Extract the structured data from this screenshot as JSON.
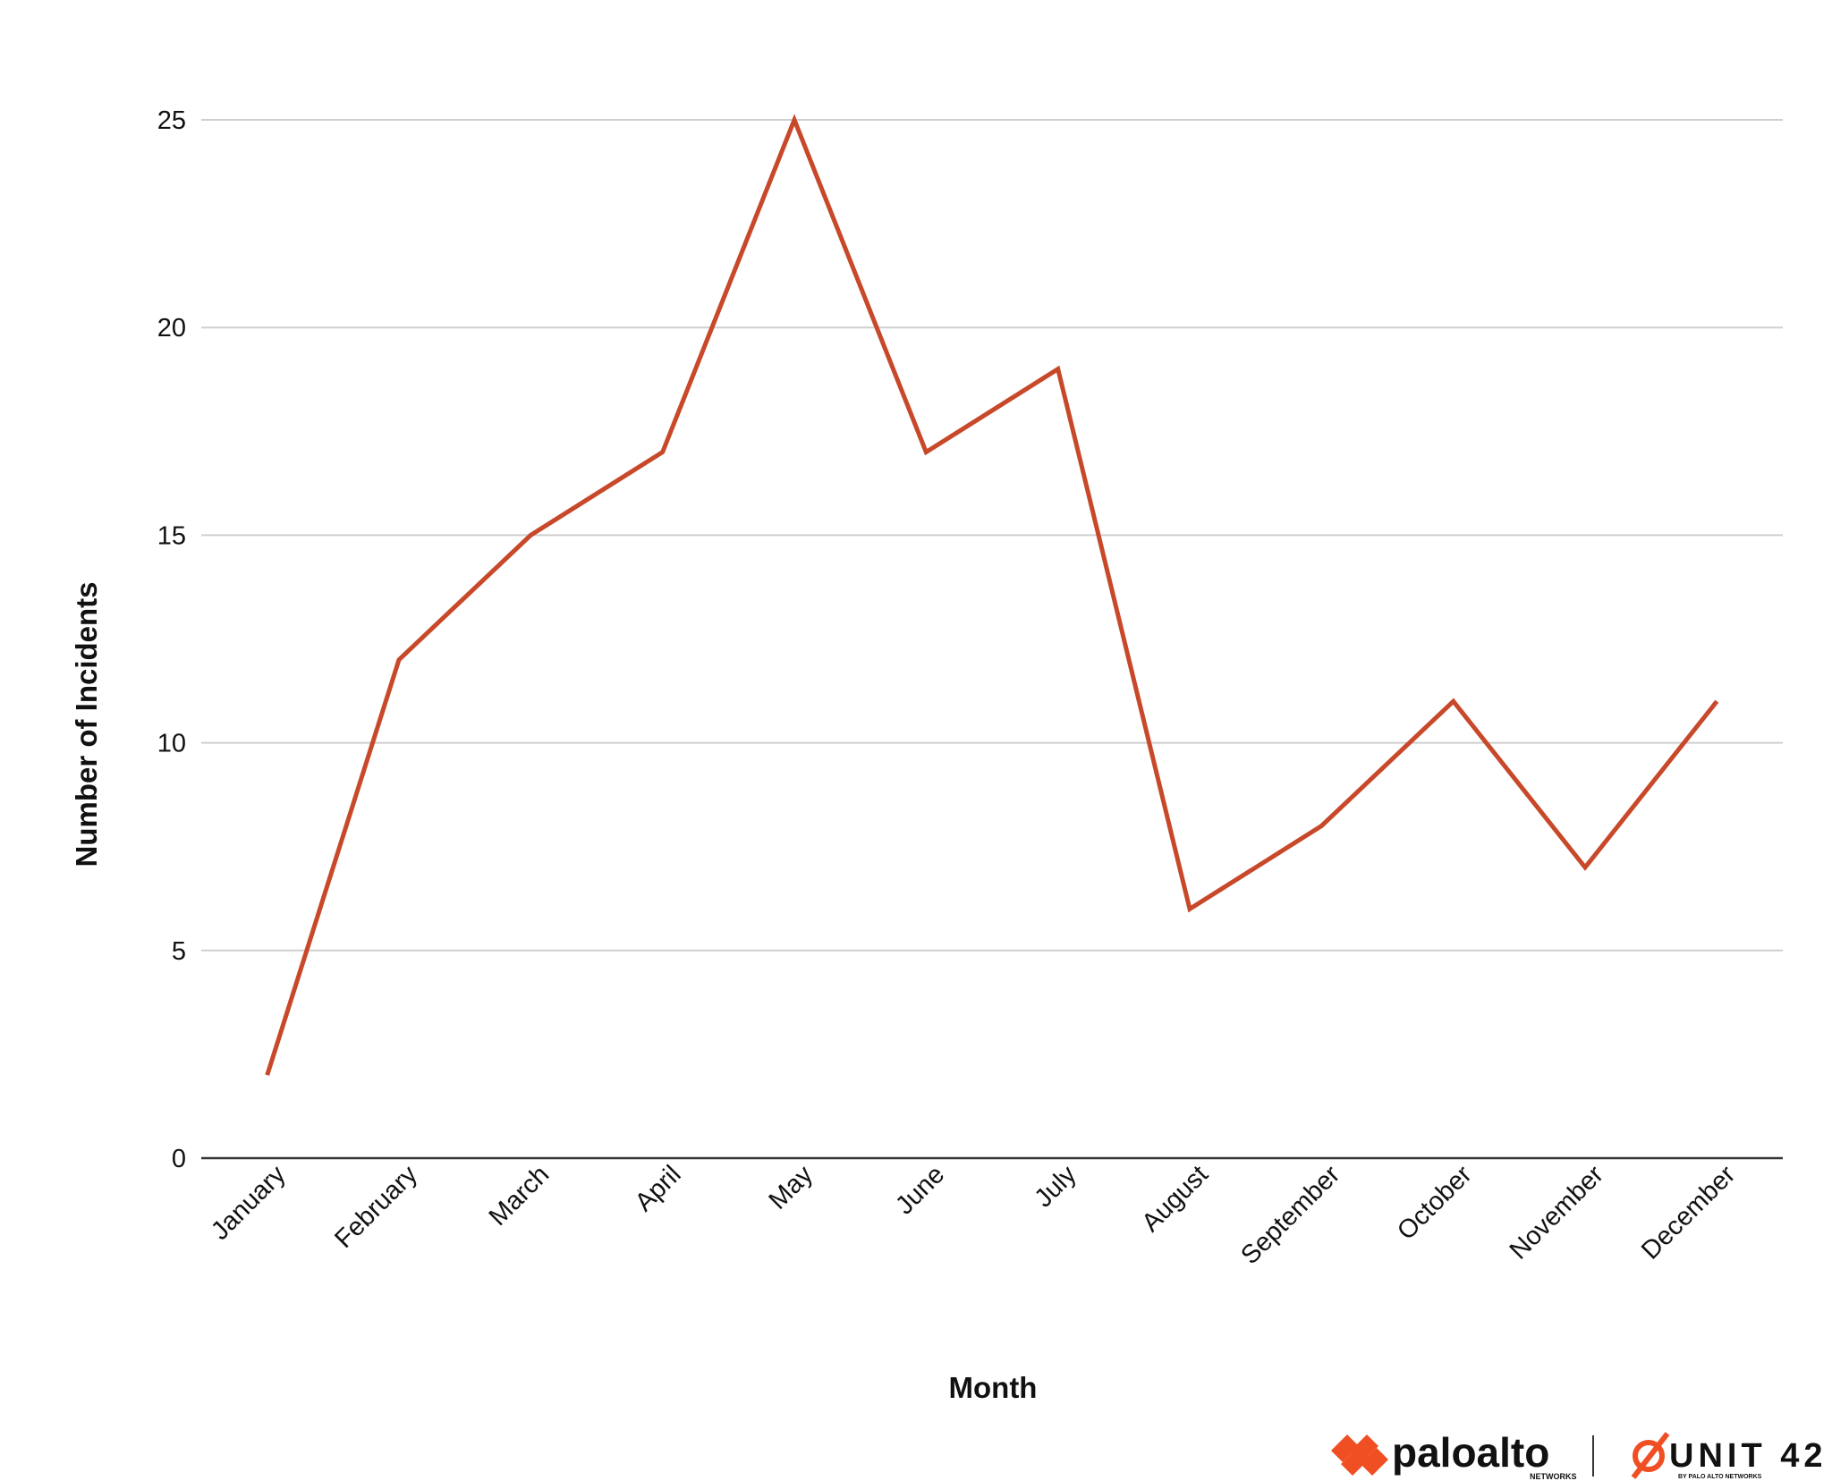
{
  "chart_data": {
    "type": "line",
    "title": "",
    "xlabel": "Month",
    "ylabel": "Number of Incidents",
    "categories": [
      "January",
      "February",
      "March",
      "April",
      "May",
      "June",
      "July",
      "August",
      "September",
      "October",
      "November",
      "December"
    ],
    "series": [
      {
        "values": [
          2,
          12,
          15,
          17,
          25,
          17,
          19,
          6,
          8,
          11,
          7,
          11
        ],
        "color": "#C8482A"
      }
    ],
    "ylim": [
      0,
      25
    ],
    "yticks": [
      0,
      5,
      10,
      15,
      20,
      25
    ],
    "grid": true,
    "legend": "none",
    "gridline_color": "#CFCFCF",
    "baseline_color": "#333333"
  },
  "branding": {
    "palo_wordmark": "paloalto",
    "palo_sub": "NETWORKS",
    "unit42_wordmark": "UNIT 42",
    "unit42_sub": "BY PALO ALTO NETWORKS",
    "accent_color": "#F04E23"
  }
}
